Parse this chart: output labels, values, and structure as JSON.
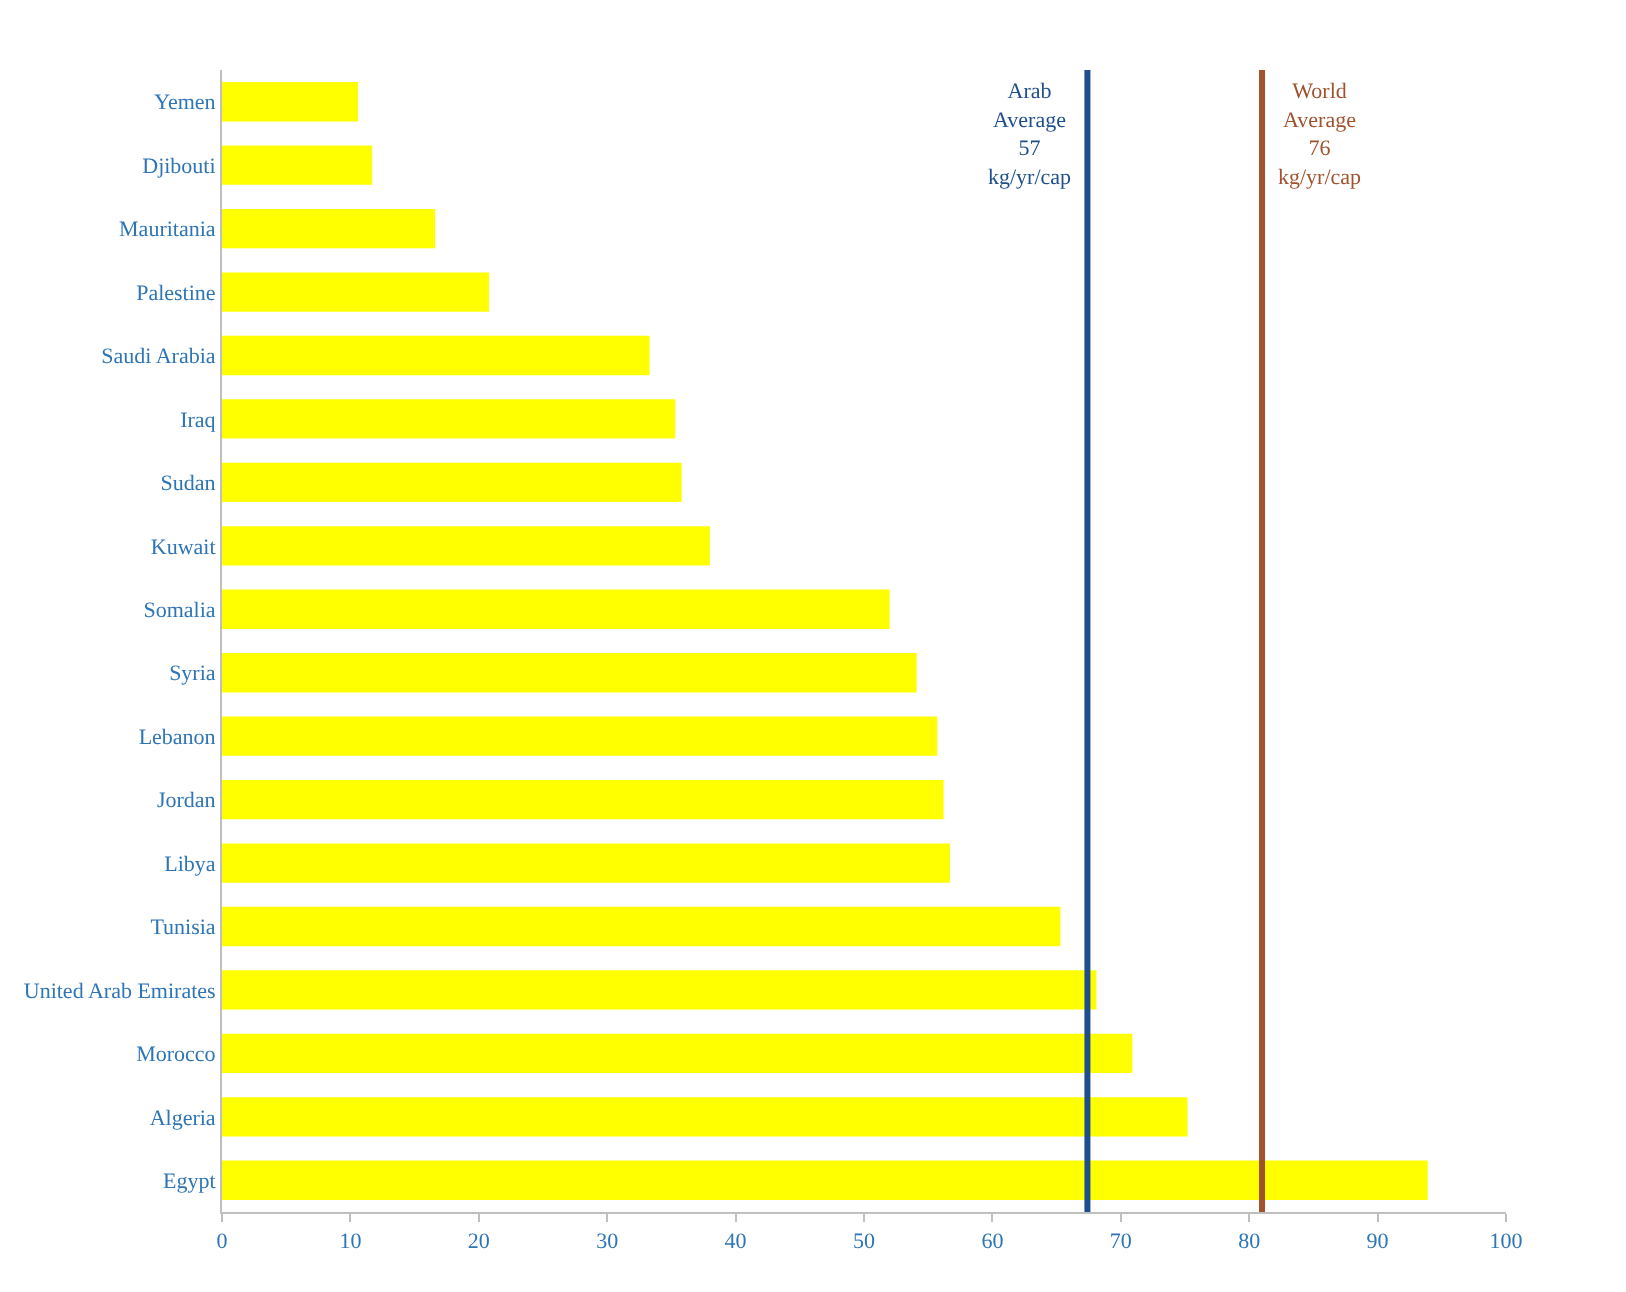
{
  "chart_data": {
    "type": "bar",
    "orientation": "horizontal",
    "categories": [
      "Yemen",
      "Djibouti",
      "Mauritania",
      "Palestine",
      "Saudi Arabia",
      "Iraq",
      "Sudan",
      "Kuwait",
      "Somalia",
      "Syria",
      "Lebanon",
      "Jordan",
      "Libya",
      "Tunisia",
      "United Arab Emirates",
      "Morocco",
      "Algeria",
      "Egypt"
    ],
    "values": [
      10.6,
      11.7,
      16.6,
      20.8,
      33.3,
      35.3,
      35.8,
      38,
      52,
      54.1,
      55.7,
      56.2,
      56.7,
      65.3,
      68.1,
      70.9,
      75.2,
      93.9
    ],
    "color": "#ffff00",
    "xlim": [
      0,
      100
    ],
    "xticks": [
      0,
      10,
      20,
      30,
      40,
      50,
      60,
      70,
      80,
      90,
      100
    ],
    "ref_lines": [
      {
        "axis": "x",
        "value": 67.4,
        "label": "Arab\nAverage\n57\nkg/yr/cap",
        "color": "#1f4e8c",
        "line_style": "solid"
      },
      {
        "axis": "x",
        "value": 81,
        "label": "World\nAverage\n76\nkg/yr/cap",
        "color": "#a0522d",
        "line_style": "solid"
      }
    ]
  }
}
